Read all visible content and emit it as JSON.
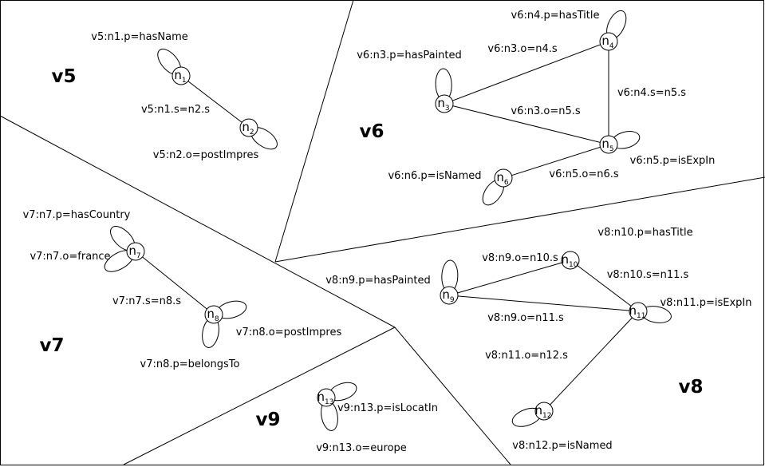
{
  "regions": [
    "v5",
    "v6",
    "v7",
    "v8",
    "v9"
  ],
  "nodes": [
    {
      "letter": "n",
      "index": "1"
    },
    {
      "letter": "n",
      "index": "2"
    },
    {
      "letter": "n",
      "index": "3"
    },
    {
      "letter": "n",
      "index": "4"
    },
    {
      "letter": "n",
      "index": "5"
    },
    {
      "letter": "n",
      "index": "6"
    },
    {
      "letter": "n",
      "index": "7"
    },
    {
      "letter": "n",
      "index": "8"
    },
    {
      "letter": "n",
      "index": "9"
    },
    {
      "letter": "n",
      "index": "10"
    },
    {
      "letter": "n",
      "index": "11"
    },
    {
      "letter": "n",
      "index": "12"
    },
    {
      "letter": "n",
      "index": "13"
    }
  ],
  "annotations": [
    "v5:n1.p=hasName",
    "v5:n1.s=n2.s",
    "v5:n2.o=postImpres",
    "v6:n4.p=hasTitle",
    "v6:n3.p=hasPainted",
    "v6:n3.o=n4.s",
    "v6:n4.s=n5.s",
    "v6:n3.o=n5.s",
    "v6:n5.p=isExpIn",
    "v6:n6.p=isNamed",
    "v6:n5.o=n6.s",
    "v7:n7.p=hasCountry",
    "v7:n7.o=france",
    "v7:n7.s=n8.s",
    "v7:n8.o=postImpres",
    "v7:n8.p=belongsTo",
    "v8:n10.p=hasTitle",
    "v8:n9.o=n10.s",
    "v8:n9.p=hasPainted",
    "v8:n10.s=n11.s",
    "v8:n11.p=isExpIn",
    "v8:n9.o=n11.s",
    "v8:n11.o=n12.s",
    "v9:n13.p=isLocatIn",
    "v9:n13.o=europe",
    "v8:n12.p=isNamed"
  ]
}
